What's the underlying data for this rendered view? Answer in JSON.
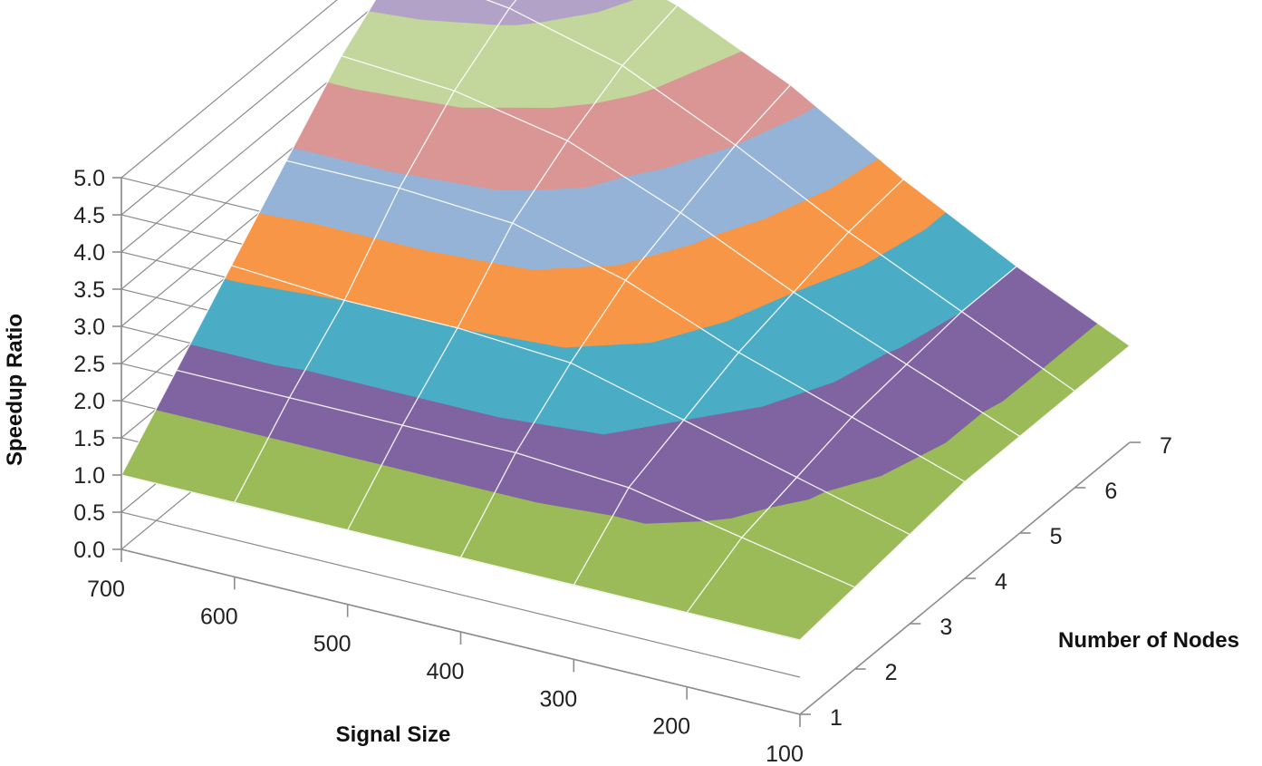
{
  "chart_data": {
    "type": "surface",
    "title": "",
    "xlabel": "Signal Size",
    "ylabel": "Number of Nodes",
    "zlabel": "Speedup Ratio",
    "x": [
      100,
      200,
      300,
      400,
      500,
      600,
      700
    ],
    "y": [
      1,
      2,
      3,
      4,
      5,
      6,
      7
    ],
    "z": [
      [
        1.0,
        1.0,
        1.0,
        1.0,
        1.0,
        1.0,
        1.0
      ],
      [
        1.1,
        1.4,
        1.7,
        1.8,
        1.8,
        1.8,
        1.8
      ],
      [
        1.2,
        1.6,
        2.0,
        2.4,
        2.5,
        2.5,
        2.6
      ],
      [
        1.3,
        1.8,
        2.3,
        2.9,
        3.3,
        3.4,
        3.4
      ],
      [
        1.3,
        1.9,
        2.5,
        3.2,
        3.8,
        4.1,
        4.2
      ],
      [
        1.3,
        2.0,
        2.7,
        3.5,
        4.2,
        4.6,
        4.8
      ],
      [
        1.3,
        2.0,
        2.8,
        3.7,
        4.4,
        4.9,
        5.2
      ]
    ],
    "zlim": [
      0,
      5
    ],
    "band_step": 0.5,
    "z_ticks": [
      "0.0",
      "0.5",
      "1.0",
      "1.5",
      "2.0",
      "2.5",
      "3.0",
      "3.5",
      "4.0",
      "4.5",
      "5.0"
    ],
    "x_ticks": [
      "100",
      "200",
      "300",
      "400",
      "500",
      "600",
      "700"
    ],
    "y_ticks": [
      "1",
      "2",
      "3",
      "4",
      "5",
      "6",
      "7"
    ],
    "band_colors": [
      "#4f81bd",
      "#c0504d",
      "#9bbb59",
      "#8064a2",
      "#4bacc6",
      "#f79646",
      "#95b3d7",
      "#d99694",
      "#c3d69b",
      "#b3a2c7"
    ],
    "grid": true
  }
}
